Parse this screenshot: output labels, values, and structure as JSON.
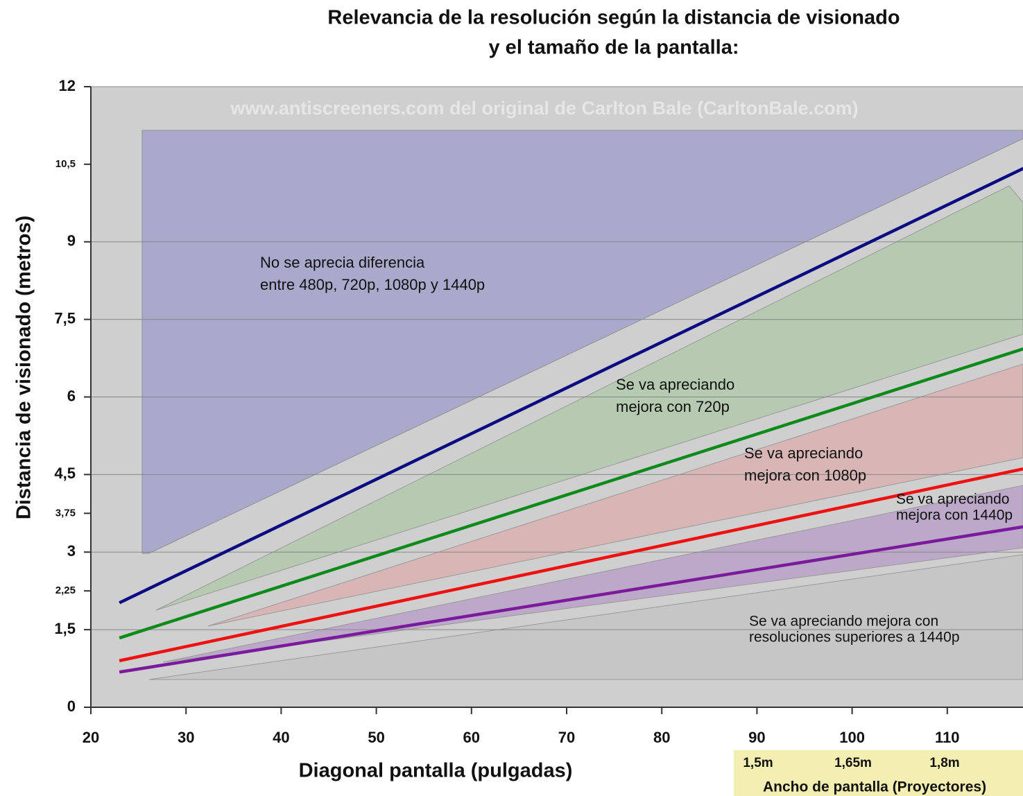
{
  "chart_data": {
    "type": "line",
    "title": [
      "Relevancia de la resolución según la distancia de visionado",
      "y el tamaño de la pantalla:"
    ],
    "watermark": "www.antiscreeners.com del original de Carlton Bale (CarltonBale.com)",
    "xlabel": "Diagonal pantalla (pulgadas)",
    "ylabel": "Distancia de visionado (metros)",
    "x": [
      23,
      118
    ],
    "series": [
      {
        "color": "#0b0b82",
        "values": [
          2.02,
          10.42
        ]
      },
      {
        "color": "#0c8a1c",
        "values": [
          1.34,
          6.93
        ]
      },
      {
        "color": "#ee1111",
        "values": [
          0.9,
          4.61
        ]
      },
      {
        "color": "#7b1b9b",
        "values": [
          0.68,
          3.49
        ]
      }
    ],
    "xlim": [
      20,
      118
    ],
    "xticks": [
      20,
      30,
      40,
      50,
      60,
      70,
      80,
      90,
      100,
      110
    ],
    "ylim": [
      0,
      12
    ],
    "yticks": [
      0,
      {
        "value": 1.5,
        "label": "1,5"
      },
      {
        "value": 2.25,
        "label": "2,25"
      },
      3,
      {
        "value": 3.75,
        "label": "3,75"
      },
      {
        "value": 4.5,
        "label": "4,5"
      },
      6,
      {
        "value": 7.5,
        "label": "7,5"
      },
      9,
      {
        "value": 10.5,
        "label": "10,5"
      },
      12
    ],
    "grid": true,
    "annotations": [
      [
        "No se aprecia diferencia",
        "entre 480p, 720p, 1080p y 1440p"
      ],
      [
        "Se va apreciando",
        "mejora con 720p"
      ],
      [
        "Se va apreciando",
        "mejora con 1080p"
      ],
      [
        "Se va apreciando",
        "mejora con 1440p"
      ],
      [
        "Se va apreciando mejora con",
        "resoluciones superiores a 1440p"
      ]
    ],
    "screen_width": {
      "labels": [
        "1,5m",
        "1,65m",
        "1,8m"
      ],
      "title": "Ancho de pantalla (Proyectores)"
    }
  }
}
